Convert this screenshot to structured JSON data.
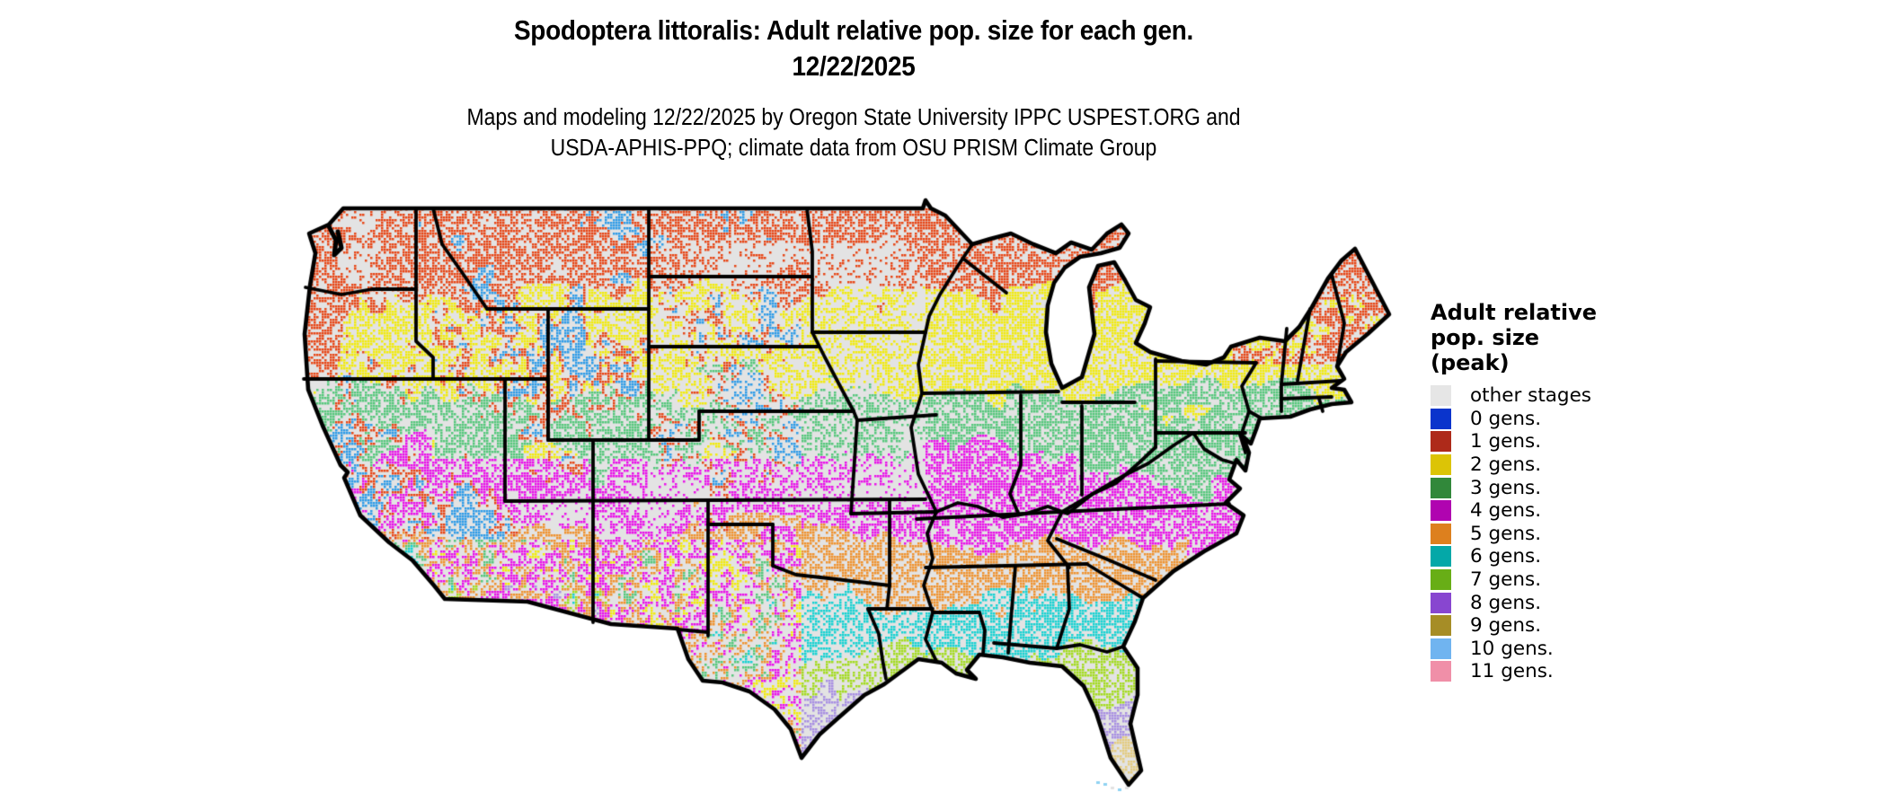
{
  "header": {
    "title_line1": "Spodoptera littoralis: Adult relative pop. size for each gen.",
    "title_line2": "12/22/2025",
    "subtitle_line1": "Maps and modeling 12/22/2025 by Oregon State University IPPC USPEST.ORG and",
    "subtitle_line2": "USDA-APHIS-PPQ; climate data from OSU PRISM Climate Group"
  },
  "legend": {
    "title_line1": "Adult relative",
    "title_line2": "pop. size",
    "title_line3": "(peak)",
    "items": [
      {
        "key": "other",
        "label": "other stages",
        "swatch": "#e6e6e6",
        "map_color": "#e3e3e3"
      },
      {
        "key": "0",
        "label": "0 gens.",
        "swatch": "#0a34cc",
        "map_color": "#2f9ce8"
      },
      {
        "key": "1",
        "label": "1 gens.",
        "swatch": "#ae2a1a",
        "map_color": "#e84616"
      },
      {
        "key": "2",
        "label": "2 gens.",
        "swatch": "#dcc406",
        "map_color": "#f2ec0c"
      },
      {
        "key": "3",
        "label": "3 gens.",
        "swatch": "#31883a",
        "map_color": "#56c87c"
      },
      {
        "key": "4",
        "label": "4 gens.",
        "swatch": "#b004b0",
        "map_color": "#ea10ea"
      },
      {
        "key": "5",
        "label": "5 gens.",
        "swatch": "#dd801e",
        "map_color": "#f0922e"
      },
      {
        "key": "6",
        "label": "6 gens.",
        "swatch": "#04a8a8",
        "map_color": "#17d2d2"
      },
      {
        "key": "7",
        "label": "7 gens.",
        "swatch": "#68ae16",
        "map_color": "#a4dc20"
      },
      {
        "key": "8",
        "label": "8 gens.",
        "swatch": "#8846d0",
        "map_color": "#a88fe2"
      },
      {
        "key": "9",
        "label": "9 gens.",
        "swatch": "#a68d26",
        "map_color": "#e3cc80"
      },
      {
        "key": "10",
        "label": "10 gens.",
        "swatch": "#70b4f0",
        "map_color": "#8fd2f2"
      },
      {
        "key": "11",
        "label": "11 gens.",
        "swatch": "#f08fa8",
        "map_color": "#f4a0b8"
      }
    ]
  },
  "map": {
    "region": "conterminous United States",
    "land_color": "#e3e3e3",
    "water_color": "#ffffff",
    "boundary_color": "#000000",
    "bands": [
      {
        "key": "1",
        "until": 105
      },
      {
        "key": "2",
        "until": 210
      },
      {
        "key": "3",
        "until": 285
      },
      {
        "key": "4",
        "until": 372
      },
      {
        "key": "5",
        "until": 448
      },
      {
        "key": "6",
        "until": 512
      },
      {
        "key": "7",
        "until": 562
      },
      {
        "key": "8",
        "until": 618
      },
      {
        "key": "9",
        "until": 662
      },
      {
        "key": "10",
        "until": 9999
      }
    ]
  }
}
